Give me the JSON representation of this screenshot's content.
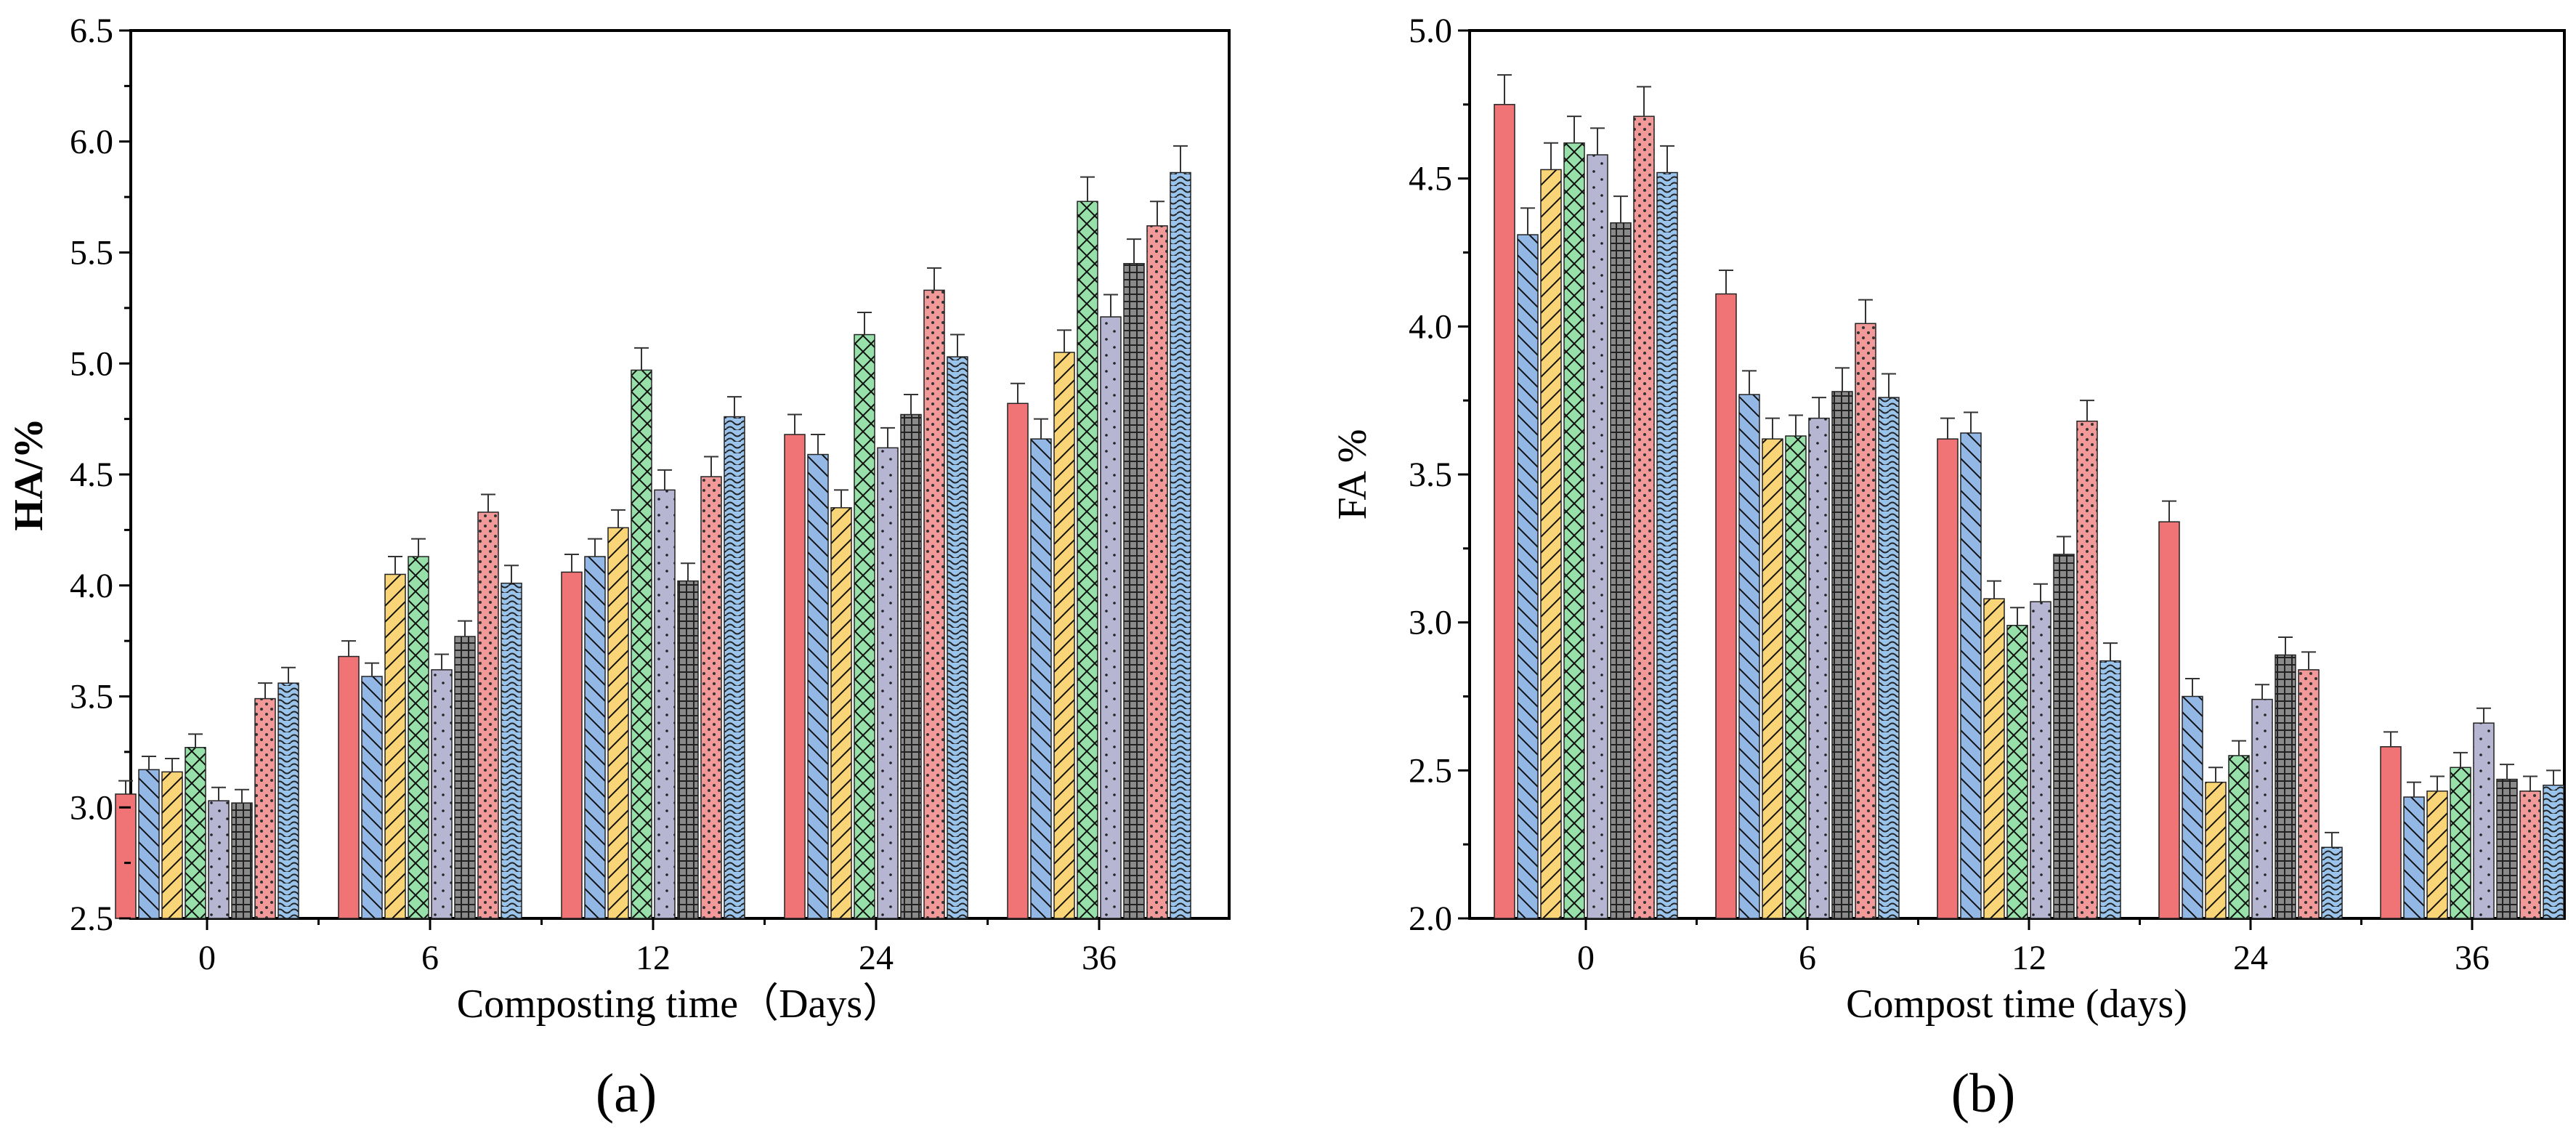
{
  "series_colors": [
    "#f07476",
    "#94b8e6",
    "#fad577",
    "#97e0a9",
    "#b6b6d2",
    "#8a8a8a",
    "#f29a9a",
    "#9ac4ec"
  ],
  "series_patterns": [
    "solid",
    "diag-down",
    "diag-up",
    "crosshatch",
    "dots",
    "grid",
    "dense-dots",
    "waves"
  ],
  "chart_data": [
    {
      "type": "bar",
      "panel_label": "(a)",
      "categories": [
        "0",
        "6",
        "12",
        "24",
        "36"
      ],
      "xlabel": "Composting time（Days）",
      "ylabel": "HA/%",
      "ylim": [
        2.5,
        6.5
      ],
      "yticks": [
        "2.5",
        "3.0",
        "3.5",
        "4.0",
        "4.5",
        "5.0",
        "5.5",
        "6.0",
        "6.5"
      ],
      "series": [
        {
          "values": [
            3.06,
            3.68,
            4.06,
            4.68,
            4.82
          ],
          "errors": [
            0.06,
            0.07,
            0.08,
            0.09,
            0.09
          ]
        },
        {
          "values": [
            3.17,
            3.59,
            4.13,
            4.59,
            4.66
          ],
          "errors": [
            0.06,
            0.06,
            0.08,
            0.09,
            0.09
          ]
        },
        {
          "values": [
            3.16,
            4.05,
            4.26,
            4.35,
            5.05
          ],
          "errors": [
            0.06,
            0.08,
            0.08,
            0.08,
            0.1
          ]
        },
        {
          "values": [
            3.27,
            4.13,
            4.97,
            5.13,
            5.73
          ],
          "errors": [
            0.06,
            0.08,
            0.1,
            0.1,
            0.11
          ]
        },
        {
          "values": [
            3.03,
            3.62,
            4.43,
            4.62,
            5.21
          ],
          "errors": [
            0.06,
            0.07,
            0.09,
            0.09,
            0.1
          ]
        },
        {
          "values": [
            3.02,
            3.77,
            4.02,
            4.77,
            5.45
          ],
          "errors": [
            0.06,
            0.07,
            0.08,
            0.09,
            0.11
          ]
        },
        {
          "values": [
            3.49,
            4.33,
            4.49,
            5.33,
            5.62
          ],
          "errors": [
            0.07,
            0.08,
            0.09,
            0.1,
            0.11
          ]
        },
        {
          "values": [
            3.56,
            4.01,
            4.76,
            5.03,
            5.86
          ],
          "errors": [
            0.07,
            0.08,
            0.09,
            0.1,
            0.12
          ]
        }
      ]
    },
    {
      "type": "bar",
      "panel_label": "(b)",
      "categories": [
        "0",
        "6",
        "12",
        "24",
        "36"
      ],
      "xlabel": "Compost time (days)",
      "ylabel": "FA %",
      "ylim": [
        2.0,
        5.0
      ],
      "yticks": [
        "2.0",
        "2.5",
        "3.0",
        "3.5",
        "4.0",
        "4.5",
        "5.0"
      ],
      "series": [
        {
          "values": [
            4.75,
            4.11,
            3.62,
            3.34,
            2.58
          ],
          "errors": [
            0.1,
            0.08,
            0.07,
            0.07,
            0.05
          ]
        },
        {
          "values": [
            4.31,
            3.77,
            3.64,
            2.75,
            2.41
          ],
          "errors": [
            0.09,
            0.08,
            0.07,
            0.06,
            0.05
          ]
        },
        {
          "values": [
            4.53,
            3.62,
            3.08,
            2.46,
            2.43
          ],
          "errors": [
            0.09,
            0.07,
            0.06,
            0.05,
            0.05
          ]
        },
        {
          "values": [
            4.62,
            3.63,
            2.99,
            2.55,
            2.51
          ],
          "errors": [
            0.09,
            0.07,
            0.06,
            0.05,
            0.05
          ]
        },
        {
          "values": [
            4.58,
            3.69,
            3.07,
            2.74,
            2.66
          ],
          "errors": [
            0.09,
            0.07,
            0.06,
            0.05,
            0.05
          ]
        },
        {
          "values": [
            4.35,
            3.78,
            3.23,
            2.89,
            2.47
          ],
          "errors": [
            0.09,
            0.08,
            0.06,
            0.06,
            0.05
          ]
        },
        {
          "values": [
            4.71,
            4.01,
            3.68,
            2.84,
            2.43
          ],
          "errors": [
            0.1,
            0.08,
            0.07,
            0.06,
            0.05
          ]
        },
        {
          "values": [
            4.52,
            3.76,
            2.87,
            2.24,
            2.45
          ],
          "errors": [
            0.09,
            0.08,
            0.06,
            0.05,
            0.05
          ]
        }
      ]
    }
  ]
}
